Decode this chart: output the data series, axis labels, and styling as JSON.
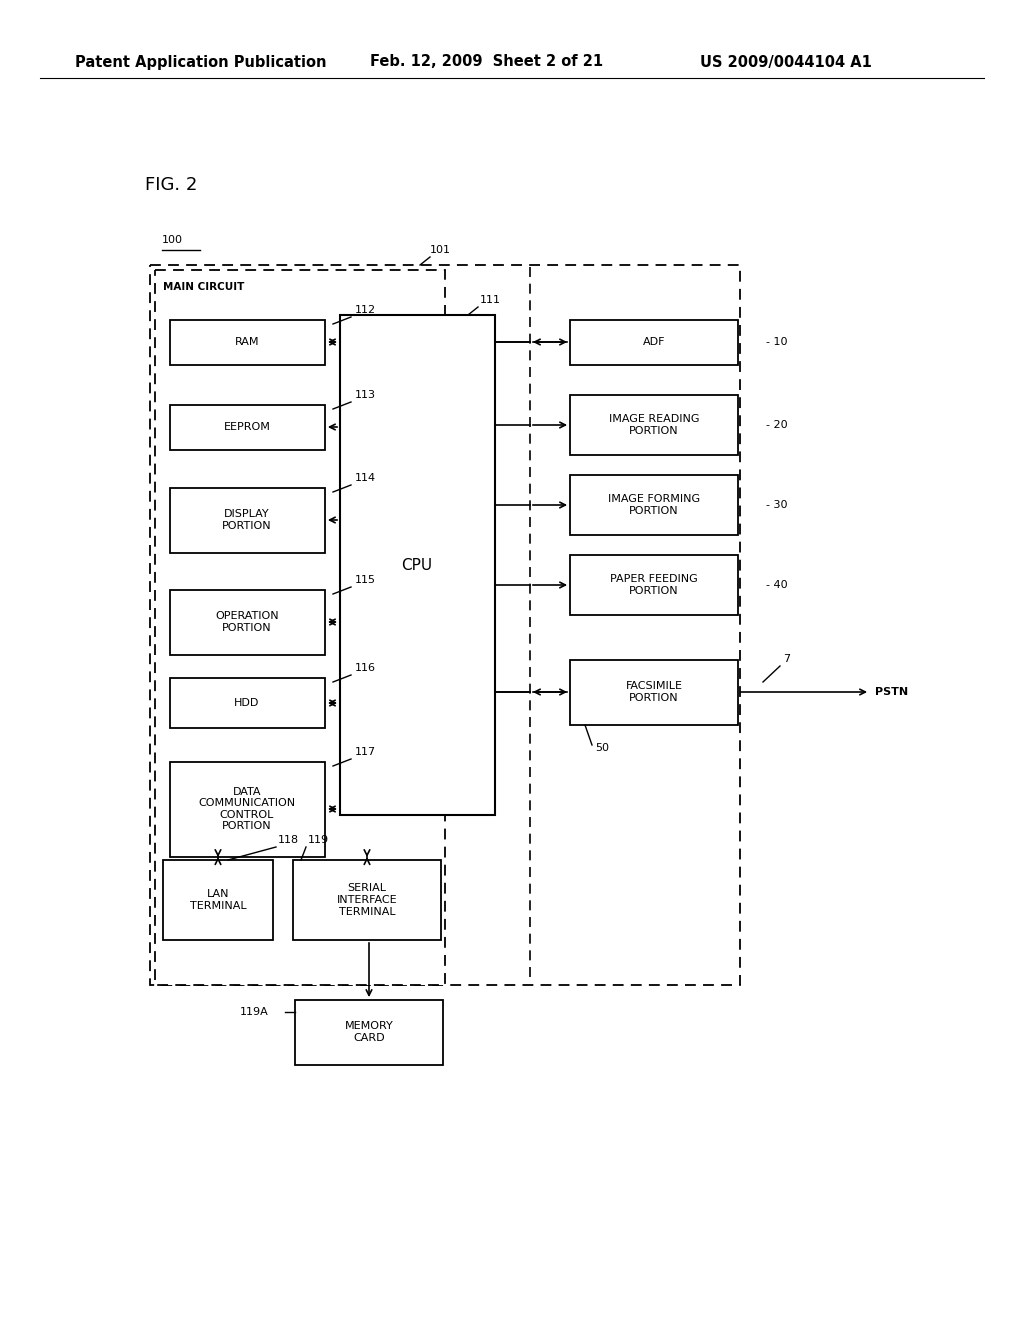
{
  "background_color": "#ffffff",
  "header_left": "Patent Application Publication",
  "header_middle": "Feb. 12, 2009  Sheet 2 of 21",
  "header_right": "US 2009/0044104 A1",
  "fig_label": "FIG. 2",
  "label_100": "100",
  "label_101": "101",
  "label_111": "111",
  "label_112": "112",
  "label_113": "113",
  "label_114": "114",
  "label_115": "115",
  "label_116": "116",
  "label_117": "117",
  "label_118": "118",
  "label_119": "119",
  "label_119A": "119A",
  "label_10": "10",
  "label_20": "20",
  "label_30": "30",
  "label_40": "40",
  "label_50": "50",
  "label_7": "7",
  "label_PSTN": "PSTN",
  "main_circuit_label": "MAIN CIRCUIT",
  "cpu_label": "CPU",
  "left_box_labels": [
    "RAM",
    "EEPROM",
    "DISPLAY\nPORTION",
    "OPERATION\nPORTION",
    "HDD",
    "DATA\nCOMMUNICATION\nCONTROL\nPORTION"
  ],
  "left_box_nums": [
    "112",
    "113",
    "114",
    "115",
    "116",
    "117"
  ],
  "right_box_labels": [
    "ADF",
    "IMAGE READING\nPORTION",
    "IMAGE FORMING\nPORTION",
    "PAPER FEEDING\nPORTION",
    "FACSIMILE\nPORTION"
  ],
  "right_box_nums": [
    "10",
    "20",
    "30",
    "40",
    ""
  ],
  "bottom_box_labels": [
    "LAN\nTERMINAL",
    "SERIAL\nINTERFACE\nTERMINAL"
  ],
  "memory_label": "MEMORY\nCARD",
  "font_size_header": 10.5,
  "font_size_label": 8,
  "font_size_box": 8,
  "font_size_fig": 13
}
